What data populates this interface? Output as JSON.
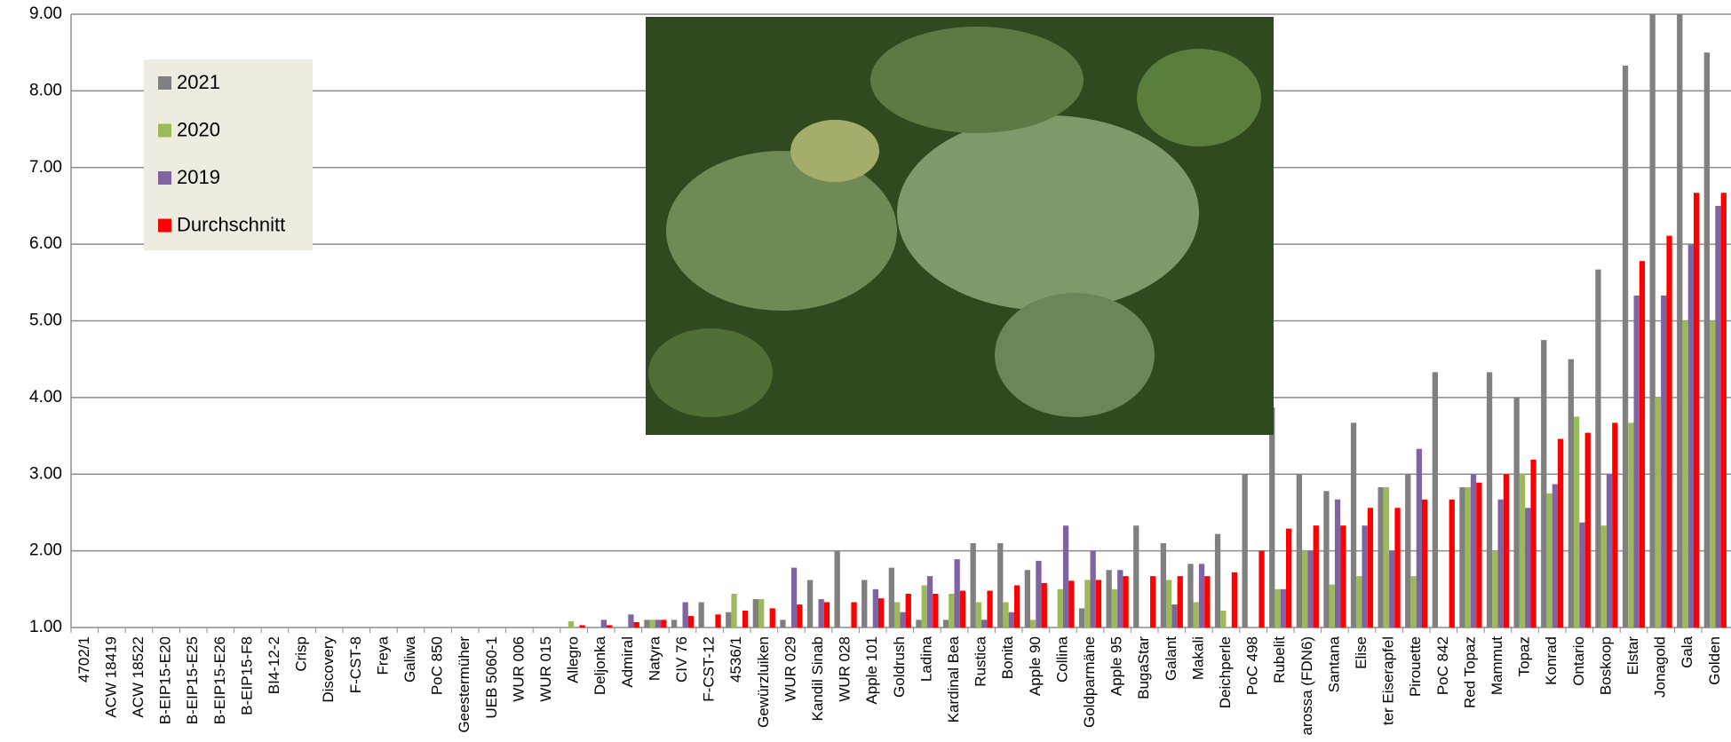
{
  "chart_data": {
    "type": "bar",
    "categories": [
      "4702/1",
      "ACW 18419",
      "ACW 18522",
      "B-EIP15-E20",
      "B-EIP15-E25",
      "B-EIP15-E26",
      "B-EIP15-F8",
      "BI4-12-2",
      "Crisp",
      "Discovery",
      "F-CST-8",
      "Freya",
      "Galiwa",
      "PoC 850",
      "Geestermüher",
      "UEB 5060-1",
      "WUR 006",
      "WUR 015",
      "Allegro",
      "Deljonka",
      "Admiral",
      "Natyra",
      "CIV 76",
      "F-CST-12",
      "4536/1",
      "Gewürzluiken",
      "WUR 029",
      "Kandil Sinab",
      "WUR 028",
      "Apple 101",
      "Goldrush",
      "Ladina",
      "Kardinal Bea",
      "Rustica",
      "Bonita",
      "Apple 90",
      "Collina",
      "Goldparmäne",
      "Apple 95",
      "BugaStar",
      "Galant",
      "Makali",
      "Deichperle",
      "PoC 498",
      "Rubelit",
      "arossa (FDN6)",
      "Santana",
      "Elise",
      "ter Eiserapfel",
      "Pirouette",
      "PoC 842",
      "Red Topaz",
      "Mammut",
      "Topaz",
      "Konrad",
      "Ontario",
      "Boskoop",
      "Elstar",
      "Jonagold",
      "Gala",
      "Golden"
    ],
    "series": [
      {
        "name": "2021",
        "color": "#808080",
        "values": [
          1,
          1,
          1,
          1,
          1,
          1,
          1,
          1,
          1,
          1,
          1,
          1,
          1,
          1,
          1,
          1,
          1,
          1,
          1,
          1,
          1,
          1.1,
          1.1,
          1.33,
          1.2,
          1.37,
          1.1,
          1.62,
          2.0,
          1.62,
          1.78,
          1.1,
          1.1,
          2.1,
          2.1,
          1.75,
          1,
          1.25,
          1.75,
          2.33,
          2.1,
          1.83,
          2.22,
          3.0,
          3.87,
          3.0,
          2.78,
          3.67,
          2.83,
          3.0,
          4.33,
          2.83,
          4.33,
          4.0,
          4.75,
          4.5,
          5.67,
          8.33,
          9.0,
          9.0,
          8.5
        ]
      },
      {
        "name": "2020",
        "color": "#9bbb59",
        "values": [
          1,
          1,
          1,
          1,
          1,
          1,
          1,
          1,
          1,
          1,
          1,
          1,
          1,
          1,
          1,
          1,
          1,
          1,
          1.08,
          1,
          1,
          1.1,
          1,
          1,
          1.44,
          1.37,
          1,
          1,
          1,
          1,
          1.33,
          1.55,
          1.44,
          1.33,
          1.33,
          1.1,
          1.5,
          1.62,
          1.5,
          1,
          1.62,
          1.33,
          1.22,
          1,
          1.5,
          2.0,
          1.56,
          1.67,
          2.83,
          1.67,
          1,
          2.83,
          2.0,
          3.0,
          2.75,
          3.75,
          2.33,
          3.67,
          4.0,
          5.0,
          5.0
        ]
      },
      {
        "name": "2019",
        "color": "#8064a2",
        "values": [
          1,
          1,
          1,
          1,
          1,
          1,
          1,
          1,
          1,
          1,
          1,
          1,
          1,
          1,
          1,
          1,
          1,
          1,
          1,
          1.1,
          1.17,
          1.1,
          1.33,
          1,
          1,
          1,
          1.78,
          1.37,
          1,
          1.5,
          1.2,
          1.67,
          1.89,
          1.1,
          1.2,
          1.87,
          2.33,
          2.0,
          1.75,
          1,
          1.3,
          1.83,
          1,
          1,
          1.5,
          2.0,
          2.67,
          2.33,
          2.0,
          3.33,
          1,
          3.0,
          2.67,
          2.56,
          2.87,
          2.37,
          3.0,
          5.33,
          5.33,
          6.0,
          6.5
        ]
      },
      {
        "name": "Durchschnitt",
        "color": "#ff0000",
        "values": [
          1,
          1,
          1,
          1,
          1,
          1,
          1,
          1,
          1,
          1,
          1,
          1,
          1,
          1,
          1,
          1,
          1,
          1,
          1.03,
          1.03,
          1.07,
          1.1,
          1.15,
          1.17,
          1.22,
          1.25,
          1.3,
          1.33,
          1.33,
          1.38,
          1.44,
          1.44,
          1.48,
          1.48,
          1.55,
          1.58,
          1.61,
          1.62,
          1.67,
          1.67,
          1.67,
          1.67,
          1.72,
          2.0,
          2.29,
          2.33,
          2.33,
          2.56,
          2.56,
          2.67,
          2.67,
          2.89,
          3.0,
          3.19,
          3.46,
          3.54,
          3.67,
          5.78,
          6.11,
          6.67,
          6.67
        ]
      }
    ],
    "ylim": [
      1,
      9
    ],
    "yticks": [
      {
        "value": 1,
        "label": "1.00"
      },
      {
        "value": 2,
        "label": "2.00"
      },
      {
        "value": 3,
        "label": "3.00"
      },
      {
        "value": 4,
        "label": "4.00"
      },
      {
        "value": 5,
        "label": "5.00"
      },
      {
        "value": 6,
        "label": "6.00"
      },
      {
        "value": 7,
        "label": "7.00"
      },
      {
        "value": 8,
        "label": "8.00"
      },
      {
        "value": 9,
        "label": "9.00"
      }
    ],
    "grid": true,
    "legend": "upper left"
  }
}
